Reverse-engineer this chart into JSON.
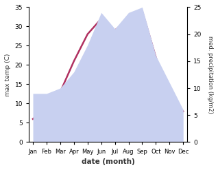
{
  "months": [
    "Jan",
    "Feb",
    "Mar",
    "Apr",
    "May",
    "Jun",
    "Jul",
    "Aug",
    "Sep",
    "Oct",
    "Nov",
    "Dec"
  ],
  "temperature": [
    6.0,
    9.0,
    13.0,
    21.0,
    28.0,
    32.0,
    29.0,
    32.0,
    34.0,
    22.0,
    12.0,
    8.0
  ],
  "precipitation": [
    9.0,
    9.0,
    10.0,
    13.0,
    18.0,
    24.0,
    21.0,
    24.0,
    25.0,
    16.0,
    11.0,
    6.0
  ],
  "temp_color": "#b03060",
  "precip_fill_color": "#c8d0f0",
  "temp_ylim": [
    0,
    35
  ],
  "precip_ylim": [
    0,
    25
  ],
  "temp_yticks": [
    0,
    5,
    10,
    15,
    20,
    25,
    30,
    35
  ],
  "precip_yticks": [
    0,
    5,
    10,
    15,
    20,
    25
  ],
  "xlabel": "date (month)",
  "ylabel_left": "max temp (C)",
  "ylabel_right": "med. precipitation (kg/m2)",
  "background_color": "#ffffff",
  "temp_linewidth": 1.8,
  "figsize": [
    3.18,
    2.47
  ],
  "dpi": 100
}
